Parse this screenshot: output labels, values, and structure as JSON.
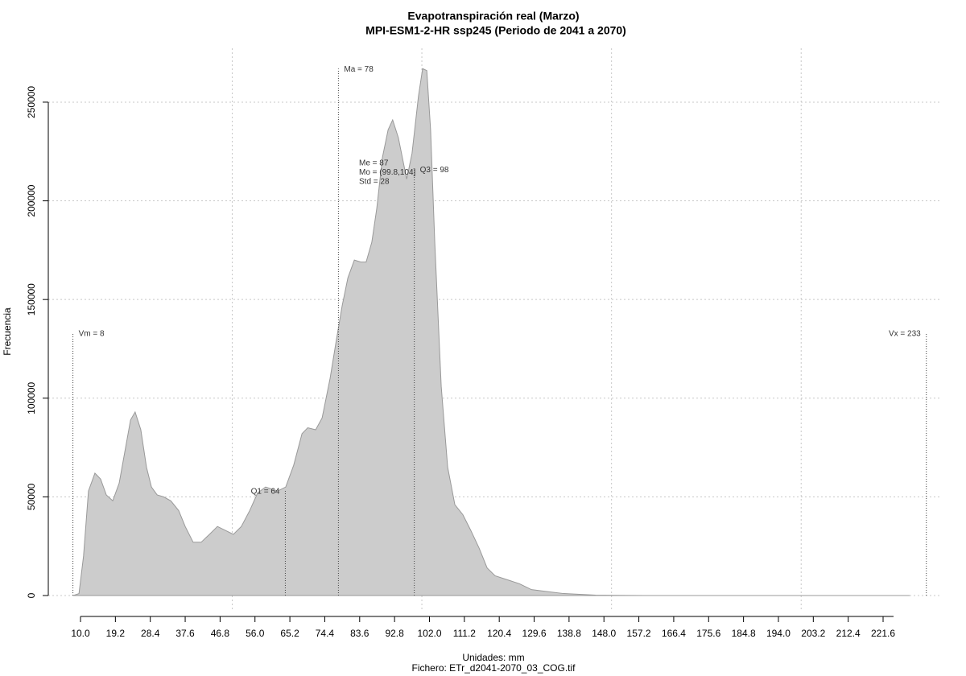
{
  "chart_data": {
    "type": "area",
    "title": "Evapotranspiración real (Marzo)",
    "subtitle": "MPI-ESM1-2-HR ssp245 (Periodo de 2041 a 2070)",
    "x_label": "Unidades: mm",
    "footer": "Fichero: ETr_d2041-2070_03_COG.tif",
    "y_label": "Frecuencia",
    "color": "#cccccc",
    "line_color": "#999999",
    "grid": true,
    "xlim": [
      1.51,
      237.09
    ],
    "ylim": [
      -8150,
      277300
    ],
    "xticks": [
      {
        "value": 10,
        "label": "10.0"
      },
      19.2,
      28.4,
      37.6,
      46.8,
      {
        "value": 56,
        "label": "56.0"
      },
      65.2,
      74.4,
      83.6,
      92.8,
      {
        "value": 102,
        "label": "102.0"
      },
      111.2,
      120.4,
      129.6,
      138.8,
      {
        "value": 148,
        "label": "148.0"
      },
      157.2,
      166.4,
      175.6,
      184.8,
      {
        "value": 194,
        "label": "194.0"
      },
      203.2,
      212.4,
      221.6
    ],
    "xgrid": [
      50,
      100,
      150,
      200
    ],
    "yticks": [
      0,
      50000,
      100000,
      150000,
      200000,
      250000
    ],
    "x": [
      8.1,
      9.6,
      10.8,
      12.1,
      13.8,
      15.3,
      16.8,
      18.5,
      20.2,
      21.7,
      23.2,
      24.4,
      25.9,
      27.4,
      28.7,
      30.2,
      31.9,
      33.8,
      35.9,
      37.6,
      39.7,
      41.8,
      44.0,
      46.1,
      48.2,
      50.3,
      52.4,
      54.6,
      56.7,
      58.8,
      62.0,
      64.1,
      66.2,
      68.4,
      69.9,
      72.0,
      73.7,
      75.8,
      77.5,
      79.0,
      80.5,
      82.2,
      83.9,
      85.3,
      86.8,
      88.1,
      89.6,
      91.1,
      92.3,
      93.8,
      96.0,
      97.4,
      99.1,
      100.2,
      101.3,
      102.3,
      103.4,
      105.1,
      106.8,
      108.7,
      110.8,
      112.9,
      115.1,
      117.2,
      119.3,
      122.5,
      125.7,
      128.9,
      133.1,
      137.4,
      145.8,
      158.5,
      228.6
    ],
    "values": [
      0,
      1000,
      20000,
      53000,
      62000,
      59000,
      51000,
      48000,
      57000,
      73000,
      89000,
      93000,
      84000,
      65000,
      55000,
      51000,
      50000,
      48000,
      43000,
      35000,
      27000,
      27000,
      31000,
      35000,
      33000,
      31000,
      35000,
      43000,
      52000,
      55000,
      53000,
      55000,
      66000,
      82000,
      85000,
      84000,
      90000,
      110000,
      130000,
      147000,
      161000,
      170000,
      169000,
      169000,
      179000,
      196000,
      222000,
      236000,
      241000,
      232000,
      211000,
      224000,
      253000,
      267000,
      266000,
      236000,
      179000,
      106000,
      65000,
      46000,
      41000,
      33000,
      24000,
      14000,
      10000,
      8000,
      6000,
      3000,
      2000,
      1000,
      200,
      0,
      0
    ],
    "markers": [
      {
        "label": "Vm = 8",
        "value": 8,
        "height": 133000
      },
      {
        "label": "Ma = 78",
        "value": 78,
        "height": 267000
      },
      {
        "label": "Q1 = 64",
        "value": 64,
        "height": 53000
      },
      {
        "label": "Q3 = 98",
        "value": 98,
        "height": 216000
      },
      {
        "label": "Vx = 233",
        "value": 233,
        "height": 133000
      }
    ],
    "stats": [
      "Me = 87",
      "Mo = (99.8,104]",
      "Std = 28"
    ]
  }
}
